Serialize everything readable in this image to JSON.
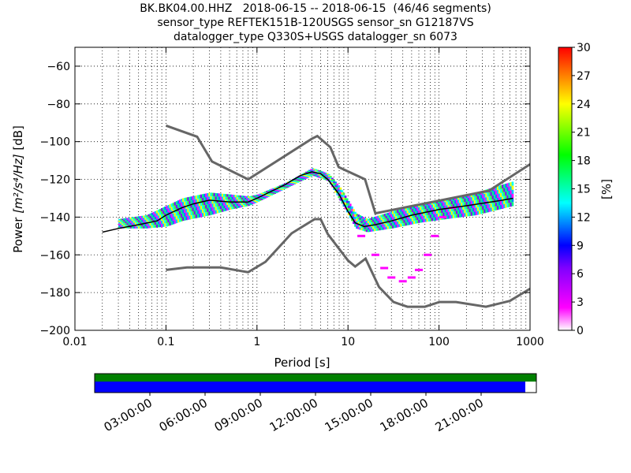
{
  "title_lines": [
    "BK.BK04.00.HHZ   2018-06-15 -- 2018-06-15  (46/46 segments)",
    "sensor_type REFTEK151B-120USGS sensor_sn G12187VS",
    "datalogger_type Q330S+USGS datalogger_sn 6073"
  ],
  "chart_data": {
    "type": "heatmap",
    "xlabel": "Period [s]",
    "ylabel_prefix": "Power ",
    "ylabel_units": "[m²/s⁴/Hz]",
    "ylabel_suffix": " [dB]",
    "xscale": "log",
    "xlim": [
      0.01,
      1000
    ],
    "ylim": [
      -200,
      -50
    ],
    "x_ticks": [
      {
        "value": 0.01,
        "label": "0.01"
      },
      {
        "value": 0.1,
        "label": "0.1"
      },
      {
        "value": 1,
        "label": "1"
      },
      {
        "value": 10,
        "label": "10"
      },
      {
        "value": 100,
        "label": "100"
      },
      {
        "value": 1000,
        "label": "1000"
      }
    ],
    "y_ticks": [
      {
        "value": -60,
        "label": "−60"
      },
      {
        "value": -80,
        "label": "−80"
      },
      {
        "value": -100,
        "label": "−100"
      },
      {
        "value": -120,
        "label": "−120"
      },
      {
        "value": -140,
        "label": "−140"
      },
      {
        "value": -160,
        "label": "−160"
      },
      {
        "value": -180,
        "label": "−180"
      },
      {
        "value": -200,
        "label": "−200"
      }
    ],
    "grid": "dotted",
    "colorbar": {
      "label": "[%]",
      "range": [
        0,
        30
      ],
      "ticks": [
        0,
        3,
        6,
        9,
        12,
        15,
        18,
        21,
        24,
        27,
        30
      ],
      "colormap": [
        "#ffffff",
        "#ff00ff",
        "#0000ff",
        "#00ffff",
        "#00ff00",
        "#ffff00",
        "#ff0000"
      ]
    },
    "noise_models": [
      {
        "name": "high",
        "color": "#666666",
        "points": [
          [
            0.1,
            -91.5
          ],
          [
            0.22,
            -97.4
          ],
          [
            0.32,
            -110.5
          ],
          [
            0.8,
            -120
          ],
          [
            4.0,
            -98.5
          ],
          [
            4.6,
            -97
          ],
          [
            6.4,
            -103
          ],
          [
            7.9,
            -113.5
          ],
          [
            15.4,
            -120
          ],
          [
            20,
            -138
          ],
          [
            354,
            -126
          ],
          [
            1000,
            -112
          ]
        ]
      },
      {
        "name": "low",
        "color": "#666666",
        "points": [
          [
            0.1,
            -168
          ],
          [
            0.17,
            -166.7
          ],
          [
            0.4,
            -166.7
          ],
          [
            0.8,
            -169.2
          ],
          [
            1.24,
            -163.7
          ],
          [
            2.4,
            -148.6
          ],
          [
            4.3,
            -141.1
          ],
          [
            5.0,
            -141.1
          ],
          [
            6.0,
            -149
          ],
          [
            10,
            -163
          ],
          [
            12,
            -166.2
          ],
          [
            15.6,
            -162
          ],
          [
            21.9,
            -177
          ],
          [
            31.6,
            -185
          ],
          [
            45,
            -187.5
          ],
          [
            70,
            -187.5
          ],
          [
            101,
            -185
          ],
          [
            154,
            -185
          ],
          [
            328,
            -187.5
          ],
          [
            600,
            -184.4
          ],
          [
            1000,
            -178
          ]
        ]
      }
    ],
    "psd_mean": {
      "color": "#000000",
      "points": [
        [
          0.02,
          -148
        ],
        [
          0.03,
          -146
        ],
        [
          0.05,
          -144
        ],
        [
          0.08,
          -142
        ],
        [
          0.1,
          -139
        ],
        [
          0.15,
          -135
        ],
        [
          0.2,
          -133
        ],
        [
          0.3,
          -131
        ],
        [
          0.5,
          -132
        ],
        [
          0.8,
          -132
        ],
        [
          1,
          -130
        ],
        [
          2,
          -123
        ],
        [
          3,
          -118
        ],
        [
          4,
          -116
        ],
        [
          5,
          -117
        ],
        [
          6,
          -120
        ],
        [
          8,
          -128
        ],
        [
          10,
          -137
        ],
        [
          12,
          -143
        ],
        [
          15,
          -145
        ],
        [
          20,
          -144
        ],
        [
          30,
          -142
        ],
        [
          50,
          -139
        ],
        [
          100,
          -136
        ],
        [
          200,
          -134
        ],
        [
          500,
          -131
        ],
        [
          650,
          -130
        ]
      ]
    },
    "psd_core_band": [
      [
        0.03,
        -141,
        -146
      ],
      [
        0.06,
        -139,
        -146
      ],
      [
        0.1,
        -134,
        -145
      ],
      [
        0.15,
        -130,
        -142
      ],
      [
        0.3,
        -127,
        -139
      ],
      [
        0.5,
        -128,
        -136
      ],
      [
        0.8,
        -129,
        -134
      ],
      [
        1,
        -128,
        -132
      ],
      [
        2,
        -122,
        -125
      ],
      [
        4,
        -114,
        -118
      ],
      [
        6,
        -117,
        -121
      ],
      [
        8,
        -124,
        -131
      ],
      [
        12,
        -138,
        -146
      ],
      [
        16,
        -141,
        -148
      ],
      [
        30,
        -137,
        -146
      ],
      [
        60,
        -133,
        -143
      ],
      [
        120,
        -130,
        -141
      ],
      [
        250,
        -127,
        -139
      ],
      [
        650,
        -121,
        -134
      ]
    ],
    "psd_low_tail": {
      "color": "#ff00ff",
      "points": [
        [
          14,
          -150
        ],
        [
          20,
          -160
        ],
        [
          25,
          -167
        ],
        [
          30,
          -172
        ],
        [
          40,
          -174
        ],
        [
          50,
          -172
        ],
        [
          60,
          -168
        ],
        [
          75,
          -160
        ],
        [
          90,
          -150
        ],
        [
          110,
          -140
        ],
        [
          140,
          -135
        ]
      ]
    },
    "time_axis": {
      "labels": [
        "03:00:00",
        "06:00:00",
        "09:00:00",
        "12:00:00",
        "15:00:00",
        "18:00:00",
        "21:00:00"
      ],
      "hours": [
        3,
        6,
        9,
        12,
        15,
        18,
        21
      ],
      "range_hours": [
        0,
        24
      ],
      "data_coverage_end_hours": 23.4,
      "top_bar_color": "#008000",
      "bottom_bar_color": "#0000ff"
    }
  }
}
